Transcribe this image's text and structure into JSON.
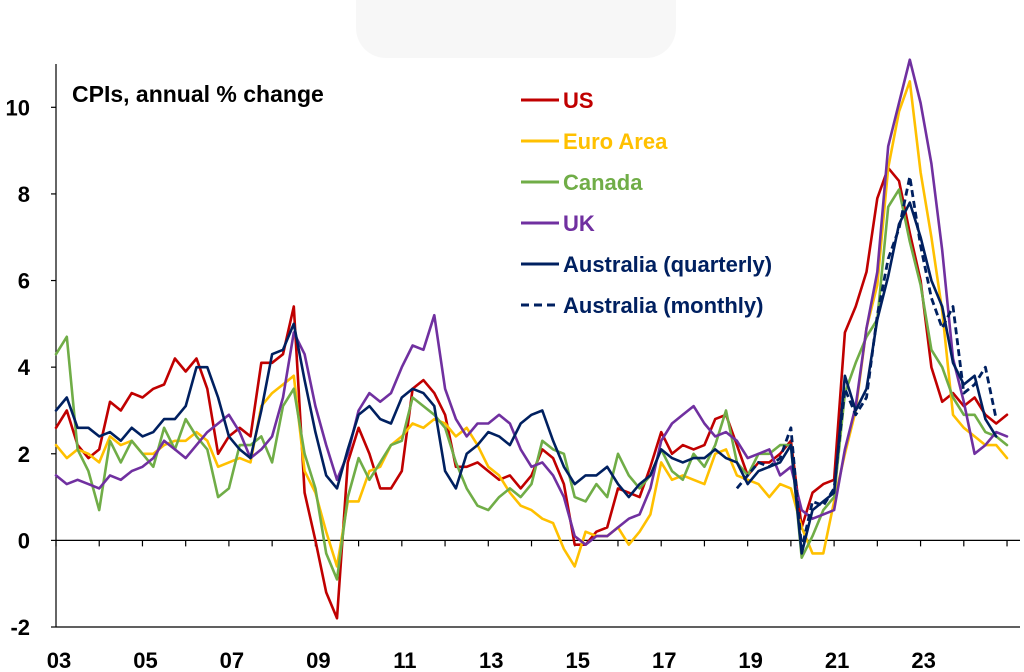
{
  "chart_data": {
    "type": "line",
    "title": "CPIs, annual % change",
    "xlabel": "",
    "ylabel": "",
    "xlim": [
      2003.0,
      2025.3
    ],
    "ylim": [
      -2,
      11
    ],
    "x_ticks": [
      2003,
      2005,
      2007,
      2009,
      2011,
      2013,
      2015,
      2017,
      2019,
      2021,
      2023
    ],
    "x_tick_labels": [
      "03",
      "05",
      "07",
      "09",
      "11",
      "13",
      "15",
      "17",
      "19",
      "21",
      "23"
    ],
    "y_ticks": [
      -2,
      0,
      2,
      4,
      6,
      8,
      10
    ],
    "y_tick_labels": [
      "-2",
      "0",
      "2",
      "4",
      "6",
      "8",
      "10"
    ],
    "zero_line": true,
    "grid": false,
    "legend_position": "top-center",
    "series": [
      {
        "name": "US",
        "color": "#c00000",
        "dash": false,
        "x": [
          2003.0,
          2003.25,
          2003.5,
          2003.75,
          2004.0,
          2004.25,
          2004.5,
          2004.75,
          2005.0,
          2005.25,
          2005.5,
          2005.75,
          2006.0,
          2006.25,
          2006.5,
          2006.75,
          2007.0,
          2007.25,
          2007.5,
          2007.75,
          2008.0,
          2008.25,
          2008.5,
          2008.75,
          2009.0,
          2009.25,
          2009.5,
          2009.75,
          2010.0,
          2010.25,
          2010.5,
          2010.75,
          2011.0,
          2011.25,
          2011.5,
          2011.75,
          2012.0,
          2012.25,
          2012.5,
          2012.75,
          2013.0,
          2013.25,
          2013.5,
          2013.75,
          2014.0,
          2014.25,
          2014.5,
          2014.75,
          2015.0,
          2015.25,
          2015.5,
          2015.75,
          2016.0,
          2016.25,
          2016.5,
          2016.75,
          2017.0,
          2017.25,
          2017.5,
          2017.75,
          2018.0,
          2018.25,
          2018.5,
          2018.75,
          2019.0,
          2019.25,
          2019.5,
          2019.75,
          2020.0,
          2020.25,
          2020.5,
          2020.75,
          2021.0,
          2021.25,
          2021.5,
          2021.75,
          2022.0,
          2022.25,
          2022.5,
          2022.75,
          2023.0,
          2023.25,
          2023.5,
          2023.75,
          2024.0,
          2024.25,
          2024.5,
          2024.75,
          2025.0
        ],
        "y": [
          2.6,
          3.0,
          2.2,
          1.9,
          2.1,
          3.2,
          3.0,
          3.4,
          3.3,
          3.5,
          3.6,
          4.2,
          3.9,
          4.2,
          3.5,
          2.0,
          2.4,
          2.6,
          2.4,
          4.1,
          4.1,
          4.3,
          5.4,
          1.1,
          0.0,
          -1.2,
          -1.8,
          1.8,
          2.6,
          2.0,
          1.2,
          1.2,
          1.6,
          3.5,
          3.7,
          3.4,
          2.9,
          1.7,
          1.7,
          1.8,
          1.6,
          1.4,
          1.5,
          1.2,
          1.5,
          2.1,
          1.9,
          1.3,
          -0.1,
          -0.1,
          0.2,
          0.3,
          1.2,
          1.1,
          1.0,
          1.7,
          2.5,
          2.0,
          2.2,
          2.1,
          2.2,
          2.8,
          2.9,
          2.2,
          1.5,
          1.8,
          1.8,
          2.0,
          2.3,
          0.3,
          1.1,
          1.3,
          1.4,
          4.8,
          5.4,
          6.2,
          7.9,
          8.6,
          8.3,
          7.1,
          6.0,
          4.0,
          3.2,
          3.4,
          3.1,
          3.3,
          2.9,
          2.7,
          2.9
        ]
      },
      {
        "name": "Euro Area",
        "color": "#ffc000",
        "dash": false,
        "x": [
          2003.0,
          2003.25,
          2003.5,
          2003.75,
          2004.0,
          2004.25,
          2004.5,
          2004.75,
          2005.0,
          2005.25,
          2005.5,
          2005.75,
          2006.0,
          2006.25,
          2006.5,
          2006.75,
          2007.0,
          2007.25,
          2007.5,
          2007.75,
          2008.0,
          2008.25,
          2008.5,
          2008.75,
          2009.0,
          2009.25,
          2009.5,
          2009.75,
          2010.0,
          2010.25,
          2010.5,
          2010.75,
          2011.0,
          2011.25,
          2011.5,
          2011.75,
          2012.0,
          2012.25,
          2012.5,
          2012.75,
          2013.0,
          2013.25,
          2013.5,
          2013.75,
          2014.0,
          2014.25,
          2014.5,
          2014.75,
          2015.0,
          2015.25,
          2015.5,
          2015.75,
          2016.0,
          2016.25,
          2016.5,
          2016.75,
          2017.0,
          2017.25,
          2017.5,
          2017.75,
          2018.0,
          2018.25,
          2018.5,
          2018.75,
          2019.0,
          2019.25,
          2019.5,
          2019.75,
          2020.0,
          2020.25,
          2020.5,
          2020.75,
          2021.0,
          2021.25,
          2021.5,
          2021.75,
          2022.0,
          2022.25,
          2022.5,
          2022.75,
          2023.0,
          2023.25,
          2023.5,
          2023.75,
          2024.0,
          2024.25,
          2024.5,
          2024.75,
          2025.0
        ],
        "y": [
          2.2,
          1.9,
          2.1,
          2.0,
          1.8,
          2.4,
          2.2,
          2.3,
          2.0,
          2.0,
          2.2,
          2.3,
          2.3,
          2.5,
          2.3,
          1.7,
          1.8,
          1.9,
          1.8,
          3.1,
          3.4,
          3.6,
          3.8,
          1.6,
          1.1,
          0.2,
          -0.6,
          0.9,
          0.9,
          1.6,
          1.7,
          2.2,
          2.4,
          2.7,
          2.6,
          2.8,
          2.7,
          2.4,
          2.6,
          2.2,
          1.7,
          1.5,
          1.1,
          0.8,
          0.7,
          0.5,
          0.4,
          -0.2,
          -0.6,
          0.2,
          0.1,
          0.1,
          0.3,
          -0.1,
          0.2,
          0.6,
          1.8,
          1.4,
          1.5,
          1.4,
          1.3,
          2.0,
          2.1,
          1.5,
          1.4,
          1.3,
          1.0,
          1.3,
          1.2,
          0.3,
          -0.3,
          -0.3,
          0.9,
          2.0,
          3.0,
          4.9,
          5.9,
          8.6,
          9.9,
          10.6,
          8.5,
          7.0,
          5.3,
          2.9,
          2.6,
          2.4,
          2.2,
          2.2,
          1.9
        ]
      },
      {
        "name": "Canada",
        "color": "#70ad47",
        "dash": false,
        "x": [
          2003.0,
          2003.25,
          2003.5,
          2003.75,
          2004.0,
          2004.25,
          2004.5,
          2004.75,
          2005.0,
          2005.25,
          2005.5,
          2005.75,
          2006.0,
          2006.25,
          2006.5,
          2006.75,
          2007.0,
          2007.25,
          2007.5,
          2007.75,
          2008.0,
          2008.25,
          2008.5,
          2008.75,
          2009.0,
          2009.25,
          2009.5,
          2009.75,
          2010.0,
          2010.25,
          2010.5,
          2010.75,
          2011.0,
          2011.25,
          2011.5,
          2011.75,
          2012.0,
          2012.25,
          2012.5,
          2012.75,
          2013.0,
          2013.25,
          2013.5,
          2013.75,
          2014.0,
          2014.25,
          2014.5,
          2014.75,
          2015.0,
          2015.25,
          2015.5,
          2015.75,
          2016.0,
          2016.25,
          2016.5,
          2016.75,
          2017.0,
          2017.25,
          2017.5,
          2017.75,
          2018.0,
          2018.25,
          2018.5,
          2018.75,
          2019.0,
          2019.25,
          2019.5,
          2019.75,
          2020.0,
          2020.25,
          2020.5,
          2020.75,
          2021.0,
          2021.25,
          2021.5,
          2021.75,
          2022.0,
          2022.25,
          2022.5,
          2022.75,
          2023.0,
          2023.25,
          2023.5,
          2023.75,
          2024.0,
          2024.25,
          2024.5,
          2024.75,
          2025.0
        ],
        "y": [
          4.3,
          4.7,
          2.1,
          1.6,
          0.7,
          2.3,
          1.8,
          2.3,
          2.0,
          1.7,
          2.6,
          2.1,
          2.8,
          2.4,
          2.1,
          1.0,
          1.2,
          2.2,
          2.2,
          2.4,
          1.8,
          3.1,
          3.5,
          2.0,
          1.2,
          -0.3,
          -0.9,
          1.0,
          1.9,
          1.4,
          1.8,
          2.2,
          2.3,
          3.3,
          3.1,
          2.9,
          2.6,
          1.8,
          1.2,
          0.8,
          0.7,
          1.0,
          1.2,
          1.0,
          1.3,
          2.3,
          2.1,
          2.0,
          1.0,
          0.9,
          1.3,
          1.0,
          2.0,
          1.5,
          1.2,
          1.5,
          2.1,
          1.6,
          1.4,
          2.0,
          1.7,
          2.2,
          3.0,
          1.8,
          1.5,
          2.0,
          2.0,
          2.2,
          2.2,
          -0.4,
          0.1,
          0.7,
          1.0,
          3.4,
          4.1,
          4.7,
          5.1,
          7.7,
          8.1,
          6.9,
          5.9,
          4.4,
          4.0,
          3.3,
          2.9,
          2.9,
          2.5,
          2.4,
          2.2
        ]
      },
      {
        "name": "UK",
        "color": "#7030a0",
        "dash": false,
        "x": [
          2003.0,
          2003.25,
          2003.5,
          2003.75,
          2004.0,
          2004.25,
          2004.5,
          2004.75,
          2005.0,
          2005.25,
          2005.5,
          2005.75,
          2006.0,
          2006.25,
          2006.5,
          2006.75,
          2007.0,
          2007.25,
          2007.5,
          2007.75,
          2008.0,
          2008.25,
          2008.5,
          2008.75,
          2009.0,
          2009.25,
          2009.5,
          2009.75,
          2010.0,
          2010.25,
          2010.5,
          2010.75,
          2011.0,
          2011.25,
          2011.5,
          2011.75,
          2012.0,
          2012.25,
          2012.5,
          2012.75,
          2013.0,
          2013.25,
          2013.5,
          2013.75,
          2014.0,
          2014.25,
          2014.5,
          2014.75,
          2015.0,
          2015.25,
          2015.5,
          2015.75,
          2016.0,
          2016.25,
          2016.5,
          2016.75,
          2017.0,
          2017.25,
          2017.5,
          2017.75,
          2018.0,
          2018.25,
          2018.5,
          2018.75,
          2019.0,
          2019.25,
          2019.5,
          2019.75,
          2020.0,
          2020.25,
          2020.5,
          2020.75,
          2021.0,
          2021.25,
          2021.5,
          2021.75,
          2022.0,
          2022.25,
          2022.5,
          2022.75,
          2023.0,
          2023.25,
          2023.5,
          2023.75,
          2024.0,
          2024.25,
          2024.5,
          2024.75,
          2025.0
        ],
        "y": [
          1.5,
          1.3,
          1.4,
          1.3,
          1.2,
          1.5,
          1.4,
          1.6,
          1.7,
          1.9,
          2.3,
          2.1,
          1.9,
          2.2,
          2.5,
          2.7,
          2.9,
          2.5,
          1.9,
          2.1,
          2.4,
          3.3,
          4.8,
          4.3,
          3.1,
          2.2,
          1.4,
          2.0,
          3.0,
          3.4,
          3.2,
          3.4,
          4.0,
          4.5,
          4.4,
          5.2,
          3.5,
          2.8,
          2.4,
          2.7,
          2.7,
          2.9,
          2.7,
          2.1,
          1.7,
          1.8,
          1.5,
          1.0,
          0.1,
          -0.1,
          0.1,
          0.1,
          0.3,
          0.5,
          0.6,
          1.2,
          2.3,
          2.7,
          2.9,
          3.1,
          2.7,
          2.4,
          2.5,
          2.3,
          1.9,
          2.0,
          2.1,
          1.5,
          1.7,
          0.7,
          0.5,
          0.6,
          0.7,
          2.1,
          3.1,
          4.9,
          6.2,
          9.1,
          10.1,
          11.1,
          10.1,
          8.7,
          6.7,
          4.2,
          3.2,
          2.0,
          2.2,
          2.5,
          2.4
        ]
      },
      {
        "name": "Australia (quarterly)",
        "color": "#002060",
        "dash": false,
        "x": [
          2003.0,
          2003.25,
          2003.5,
          2003.75,
          2004.0,
          2004.25,
          2004.5,
          2004.75,
          2005.0,
          2005.25,
          2005.5,
          2005.75,
          2006.0,
          2006.25,
          2006.5,
          2006.75,
          2007.0,
          2007.25,
          2007.5,
          2007.75,
          2008.0,
          2008.25,
          2008.5,
          2008.75,
          2009.0,
          2009.25,
          2009.5,
          2009.75,
          2010.0,
          2010.25,
          2010.5,
          2010.75,
          2011.0,
          2011.25,
          2011.5,
          2011.75,
          2012.0,
          2012.25,
          2012.5,
          2012.75,
          2013.0,
          2013.25,
          2013.5,
          2013.75,
          2014.0,
          2014.25,
          2014.5,
          2014.75,
          2015.0,
          2015.25,
          2015.5,
          2015.75,
          2016.0,
          2016.25,
          2016.5,
          2016.75,
          2017.0,
          2017.25,
          2017.5,
          2017.75,
          2018.0,
          2018.25,
          2018.5,
          2018.75,
          2019.0,
          2019.25,
          2019.5,
          2019.75,
          2020.0,
          2020.25,
          2020.5,
          2020.75,
          2021.0,
          2021.25,
          2021.5,
          2021.75,
          2022.0,
          2022.25,
          2022.5,
          2022.75,
          2023.0,
          2023.25,
          2023.5,
          2023.75,
          2024.0,
          2024.25,
          2024.5,
          2024.75
        ],
        "y": [
          3.0,
          3.3,
          2.6,
          2.6,
          2.4,
          2.5,
          2.3,
          2.6,
          2.4,
          2.5,
          2.8,
          2.8,
          3.1,
          4.0,
          4.0,
          3.3,
          2.4,
          2.1,
          1.9,
          3.0,
          4.3,
          4.4,
          5.0,
          3.7,
          2.5,
          1.5,
          1.2,
          2.1,
          2.9,
          3.1,
          2.8,
          2.7,
          3.3,
          3.5,
          3.4,
          3.1,
          1.6,
          1.2,
          2.0,
          2.2,
          2.5,
          2.4,
          2.2,
          2.7,
          2.9,
          3.0,
          2.3,
          1.7,
          1.3,
          1.5,
          1.5,
          1.7,
          1.3,
          1.0,
          1.3,
          1.5,
          2.1,
          1.9,
          1.8,
          1.9,
          1.9,
          2.1,
          1.9,
          1.8,
          1.3,
          1.6,
          1.7,
          1.8,
          2.2,
          -0.3,
          0.7,
          0.9,
          1.1,
          3.8,
          3.0,
          3.5,
          5.1,
          6.1,
          7.3,
          7.8,
          7.0,
          6.0,
          5.4,
          4.1,
          3.6,
          3.8,
          2.8,
          2.4
        ]
      },
      {
        "name": "Australia (monthly)",
        "color": "#002060",
        "dash": true,
        "x": [
          2018.75,
          2019.0,
          2019.25,
          2019.5,
          2019.75,
          2020.0,
          2020.25,
          2020.5,
          2020.75,
          2021.0,
          2021.25,
          2021.5,
          2021.75,
          2022.0,
          2022.25,
          2022.5,
          2022.75,
          2023.0,
          2023.25,
          2023.5,
          2023.75,
          2024.0,
          2024.25,
          2024.5,
          2024.75
        ],
        "y": [
          1.2,
          1.5,
          1.8,
          1.7,
          1.9,
          2.6,
          -0.2,
          0.9,
          0.8,
          1.2,
          3.5,
          2.9,
          3.3,
          5.2,
          6.5,
          7.2,
          8.4,
          6.8,
          5.6,
          4.9,
          5.4,
          3.4,
          3.6,
          4.0,
          2.8
        ]
      }
    ]
  }
}
